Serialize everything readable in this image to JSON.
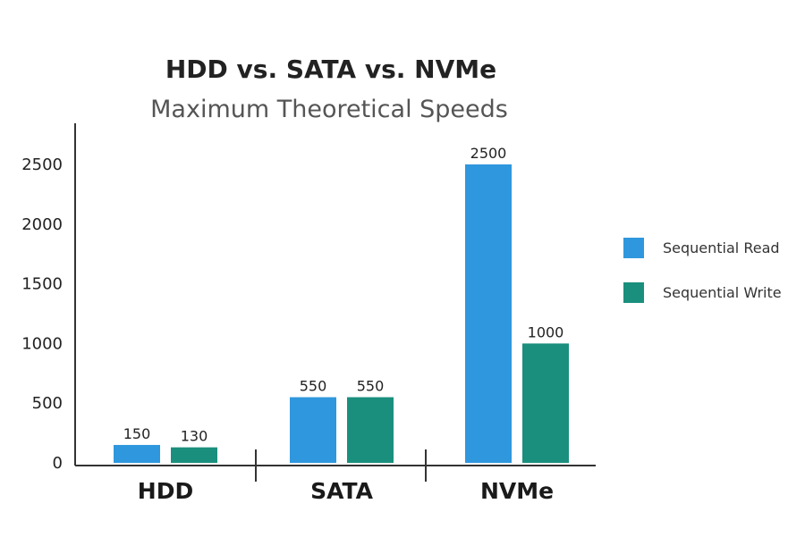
{
  "chart_data": {
    "type": "bar",
    "title": "HDD vs. SATA vs. NVMe",
    "subtitle": "Maximum Theoretical Speeds",
    "xlabel": "",
    "ylabel": "",
    "categories": [
      "HDD",
      "SATA",
      "NVMe"
    ],
    "series": [
      {
        "name": "Sequential Read",
        "values": [
          150,
          550,
          2500
        ],
        "color": "#2f97dd"
      },
      {
        "name": "Sequential Write",
        "values": [
          130,
          550,
          1000
        ],
        "color": "#1a8f7d"
      }
    ],
    "data_labels": [
      [
        "150",
        "550",
        "2500"
      ],
      [
        "130",
        "550",
        "1000"
      ]
    ],
    "ylim": [
      0,
      2800
    ],
    "yticks": [
      0,
      500,
      1000,
      1500,
      2000,
      2500
    ],
    "grid": false,
    "legend_position": "right"
  }
}
